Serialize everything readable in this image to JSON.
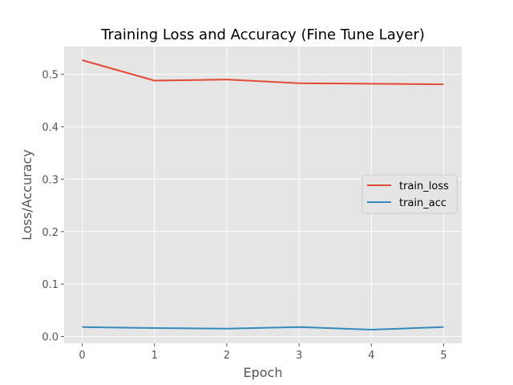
{
  "chart_data": {
    "type": "line",
    "title": "Training Loss and Accuracy (Fine Tune Layer)",
    "xlabel": "Epoch",
    "ylabel": "Loss/Accuracy",
    "x": [
      0,
      1,
      2,
      3,
      4,
      5
    ],
    "xticks": [
      "0",
      "1",
      "2",
      "3",
      "4",
      "5"
    ],
    "yticks": [
      "0.0",
      "0.1",
      "0.2",
      "0.3",
      "0.4",
      "0.5"
    ],
    "xlim": [
      -0.25,
      5.25
    ],
    "ylim": [
      -0.013,
      0.553
    ],
    "grid": true,
    "legend_position": "center-right",
    "series": [
      {
        "name": "train_loss",
        "color": "#E24A33",
        "values": [
          0.527,
          0.488,
          0.49,
          0.483,
          0.482,
          0.481
        ]
      },
      {
        "name": "train_acc",
        "color": "#348ABD",
        "values": [
          0.018,
          0.016,
          0.015,
          0.018,
          0.013,
          0.018
        ]
      }
    ]
  }
}
